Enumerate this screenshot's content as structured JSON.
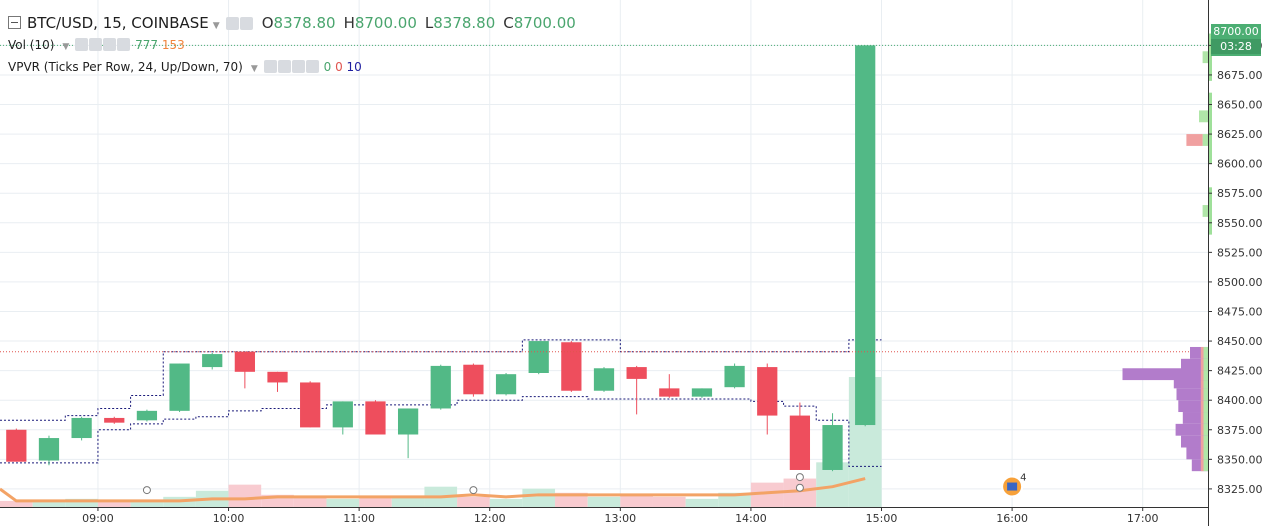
{
  "header": {
    "symbol": "BTC/USD, 15, COINBASE",
    "ohlc": {
      "o_key": "O",
      "o": "8378.80",
      "h_key": "H",
      "h": "8700.00",
      "l_key": "L",
      "l": "8378.80",
      "c_key": "C",
      "c": "8700.00"
    }
  },
  "indicators": {
    "vol": {
      "label": "Vol (10)",
      "v1": "777",
      "v2": "153"
    },
    "vpvr": {
      "label": "VPVR (Ticks Per Row, 24, Up/Down, 70)",
      "v1": "0",
      "v2": "0",
      "v3": "10"
    }
  },
  "price_tag": {
    "price": "8700.00",
    "countdown": "03:28"
  },
  "event_badge": {
    "count": "4"
  },
  "colors": {
    "up": "#52b986",
    "down": "#ee4e5d",
    "vol_up": "#c9eadb",
    "vol_down": "#f8cbd0",
    "vol_ma": "#f3a366",
    "vpvr_up": "#b0e6a8",
    "vpvr_down": "#f0a0a0",
    "vpvr_profile": "#b27ccb",
    "grid": "#e9eef2",
    "value_area": "#1a1a7a"
  },
  "chart_data": {
    "type": "candlestick",
    "x_ticks": [
      "09:00",
      "10:00",
      "11:00",
      "12:00",
      "13:00",
      "14:00",
      "15:00",
      "16:00",
      "17:00"
    ],
    "y_ticks": [
      "8325.00",
      "8350.00",
      "8375.00",
      "8400.00",
      "8425.00",
      "8450.00",
      "8475.00",
      "8500.00",
      "8525.00",
      "8550.00",
      "8575.00",
      "8600.00",
      "8625.00",
      "8650.00",
      "8675.00",
      "8700.00"
    ],
    "ylim": [
      8319,
      8713
    ],
    "xlim": [
      "08:15",
      "17:30"
    ],
    "interval_minutes": 15,
    "hlines": [
      8700,
      8441
    ],
    "candles": [
      {
        "t": "08:15",
        "o": 8375,
        "h": 8376,
        "l": 8348,
        "c": 8348
      },
      {
        "t": "08:30",
        "o": 8349,
        "h": 8370,
        "l": 8345,
        "c": 8368
      },
      {
        "t": "08:45",
        "o": 8368,
        "h": 8386,
        "l": 8366,
        "c": 8385
      },
      {
        "t": "09:00",
        "o": 8385,
        "h": 8386,
        "l": 8380,
        "c": 8381
      },
      {
        "t": "09:15",
        "o": 8383,
        "h": 8392,
        "l": 8382,
        "c": 8391
      },
      {
        "t": "09:30",
        "o": 8391,
        "h": 8431,
        "l": 8390,
        "c": 8431
      },
      {
        "t": "09:45",
        "o": 8428,
        "h": 8440,
        "l": 8426,
        "c": 8439
      },
      {
        "t": "10:00",
        "o": 8441,
        "h": 8441,
        "l": 8410,
        "c": 8424
      },
      {
        "t": "10:15",
        "o": 8424,
        "h": 8424,
        "l": 8407,
        "c": 8415
      },
      {
        "t": "10:30",
        "o": 8415,
        "h": 8416,
        "l": 8377,
        "c": 8377
      },
      {
        "t": "10:45",
        "o": 8377,
        "h": 8399,
        "l": 8371,
        "c": 8399
      },
      {
        "t": "11:00",
        "o": 8399,
        "h": 8400,
        "l": 8371,
        "c": 8371
      },
      {
        "t": "11:15",
        "o": 8371,
        "h": 8393,
        "l": 8351,
        "c": 8393
      },
      {
        "t": "11:30",
        "o": 8393,
        "h": 8430,
        "l": 8392,
        "c": 8429
      },
      {
        "t": "11:45",
        "o": 8430,
        "h": 8431,
        "l": 8403,
        "c": 8405
      },
      {
        "t": "12:00",
        "o": 8405,
        "h": 8423,
        "l": 8404,
        "c": 8422
      },
      {
        "t": "12:15",
        "o": 8423,
        "h": 8450,
        "l": 8422,
        "c": 8450
      },
      {
        "t": "12:30",
        "o": 8449,
        "h": 8450,
        "l": 8407,
        "c": 8408
      },
      {
        "t": "12:45",
        "o": 8408,
        "h": 8428,
        "l": 8407,
        "c": 8427
      },
      {
        "t": "13:00",
        "o": 8428,
        "h": 8429,
        "l": 8388,
        "c": 8418
      },
      {
        "t": "13:15",
        "o": 8410,
        "h": 8422,
        "l": 8402,
        "c": 8403
      },
      {
        "t": "13:30",
        "o": 8403,
        "h": 8410,
        "l": 8402,
        "c": 8410
      },
      {
        "t": "13:45",
        "o": 8411,
        "h": 8431,
        "l": 8410,
        "c": 8429
      },
      {
        "t": "14:00",
        "o": 8428,
        "h": 8431,
        "l": 8371,
        "c": 8387
      },
      {
        "t": "14:15",
        "o": 8387,
        "h": 8398,
        "l": 8341,
        "c": 8341
      },
      {
        "t": "14:30",
        "o": 8341,
        "h": 8389,
        "l": 8340,
        "c": 8379
      },
      {
        "t": "14:45",
        "o": 8379,
        "h": 8700,
        "l": 8378,
        "c": 8700
      }
    ],
    "volume": [
      {
        "t": "08:15",
        "dir": "down",
        "v": 3
      },
      {
        "t": "08:30",
        "dir": "up",
        "v": 3
      },
      {
        "t": "08:45",
        "dir": "up",
        "v": 4
      },
      {
        "t": "09:00",
        "dir": "down",
        "v": 3
      },
      {
        "t": "09:15",
        "dir": "up",
        "v": 3
      },
      {
        "t": "09:30",
        "dir": "up",
        "v": 5
      },
      {
        "t": "09:45",
        "dir": "up",
        "v": 8
      },
      {
        "t": "10:00",
        "dir": "down",
        "v": 11
      },
      {
        "t": "10:15",
        "dir": "down",
        "v": 6
      },
      {
        "t": "10:30",
        "dir": "down",
        "v": 5
      },
      {
        "t": "10:45",
        "dir": "up",
        "v": 4
      },
      {
        "t": "11:00",
        "dir": "down",
        "v": 5
      },
      {
        "t": "11:15",
        "dir": "up",
        "v": 5
      },
      {
        "t": "11:30",
        "dir": "up",
        "v": 10
      },
      {
        "t": "11:45",
        "dir": "down",
        "v": 5
      },
      {
        "t": "12:00",
        "dir": "up",
        "v": 4
      },
      {
        "t": "12:15",
        "dir": "up",
        "v": 9
      },
      {
        "t": "12:30",
        "dir": "down",
        "v": 7
      },
      {
        "t": "12:45",
        "dir": "up",
        "v": 5
      },
      {
        "t": "13:00",
        "dir": "down",
        "v": 6
      },
      {
        "t": "13:15",
        "dir": "down",
        "v": 5
      },
      {
        "t": "13:30",
        "dir": "up",
        "v": 4
      },
      {
        "t": "13:45",
        "dir": "up",
        "v": 7
      },
      {
        "t": "14:00",
        "dir": "down",
        "v": 12
      },
      {
        "t": "14:15",
        "dir": "down",
        "v": 14
      },
      {
        "t": "14:30",
        "dir": "up",
        "v": 22
      },
      {
        "t": "14:45",
        "dir": "up",
        "v": 64
      }
    ],
    "volume_ma": [
      3,
      3,
      3,
      3,
      3,
      3,
      4,
      4,
      5,
      5,
      5,
      5,
      5,
      5,
      6,
      5,
      6,
      6,
      6,
      6,
      6,
      6,
      6,
      7,
      8,
      10,
      14
    ],
    "volume_max": 64,
    "value_area_upper": [
      8383,
      8383,
      8387,
      8393,
      8404,
      8441,
      8441,
      8441,
      8441,
      8441,
      8441,
      8441,
      8441,
      8441,
      8441,
      8441,
      8451,
      8451,
      8451,
      8441,
      8441,
      8441,
      8441,
      8441,
      8441,
      8441,
      8451
    ],
    "value_area_lower": [
      8347,
      8347,
      8347,
      8375,
      8380,
      8384,
      8386,
      8391,
      8393,
      8393,
      8396,
      8396,
      8396,
      8396,
      8400,
      8400,
      8403,
      8403,
      8401,
      8401,
      8401,
      8401,
      8401,
      8399,
      8395,
      8383,
      8344
    ],
    "vpvr_rows": [
      {
        "p": 8345,
        "up": 0.05,
        "down": 0.03,
        "profile": 0.18
      },
      {
        "p": 8355,
        "up": 0.05,
        "down": 0.03,
        "profile": 0.24
      },
      {
        "p": 8365,
        "up": 0.05,
        "down": 0.03,
        "profile": 0.3
      },
      {
        "p": 8375,
        "up": 0.05,
        "down": 0.03,
        "profile": 0.36
      },
      {
        "p": 8385,
        "up": 0.05,
        "down": 0.03,
        "profile": 0.28
      },
      {
        "p": 8395,
        "up": 0.05,
        "down": 0.03,
        "profile": 0.33
      },
      {
        "p": 8405,
        "up": 0.05,
        "down": 0.03,
        "profile": 0.35
      },
      {
        "p": 8415,
        "up": 0.05,
        "down": 0.03,
        "profile": 0.38
      },
      {
        "p": 8422,
        "up": 0.05,
        "down": 0.03,
        "profile": 0.95
      },
      {
        "p": 8430,
        "up": 0.05,
        "down": 0.03,
        "profile": 0.3
      },
      {
        "p": 8440,
        "up": 0.05,
        "down": 0.03,
        "profile": 0.2
      },
      {
        "p": 8560,
        "up": 0.06,
        "down": 0.0,
        "profile": 0.0
      },
      {
        "p": 8620,
        "up": 0.06,
        "down": 0.18,
        "profile": 0.0
      },
      {
        "p": 8640,
        "up": 0.1,
        "down": 0.0,
        "profile": 0.0
      },
      {
        "p": 8690,
        "up": 0.06,
        "down": 0.0,
        "profile": 0.0
      }
    ],
    "events": [
      {
        "t": "09:15",
        "y": 8324,
        "kind": "marker"
      },
      {
        "t": "11:45",
        "y": 8324,
        "kind": "marker"
      },
      {
        "t": "14:15",
        "y": 8326,
        "kind": "marker"
      },
      {
        "t": "14:15",
        "y": 8335,
        "kind": "marker"
      },
      {
        "t": "16:00",
        "y": 8327,
        "kind": "badge"
      }
    ]
  }
}
